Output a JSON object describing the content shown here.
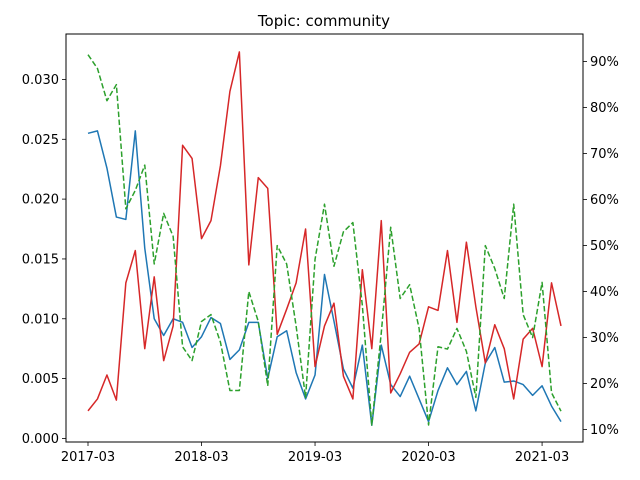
{
  "chart_data": {
    "type": "line",
    "title": "Topic: community",
    "xlabel": "",
    "ylabel": "",
    "y2label": "",
    "x_dates": [
      "2017-03",
      "2017-04",
      "2017-05",
      "2017-06",
      "2017-07",
      "2017-08",
      "2017-09",
      "2017-10",
      "2017-11",
      "2017-12",
      "2018-01",
      "2018-02",
      "2018-03",
      "2018-04",
      "2018-05",
      "2018-06",
      "2018-07",
      "2018-08",
      "2018-09",
      "2018-10",
      "2018-11",
      "2018-12",
      "2019-01",
      "2019-02",
      "2019-03",
      "2019-04",
      "2019-05",
      "2019-06",
      "2019-07",
      "2019-08",
      "2019-09",
      "2019-10",
      "2019-11",
      "2019-12",
      "2020-01",
      "2020-02",
      "2020-03",
      "2020-04",
      "2020-05",
      "2020-06",
      "2020-07",
      "2020-08",
      "2020-09",
      "2020-10",
      "2020-11",
      "2020-12",
      "2021-01",
      "2021-02",
      "2021-03",
      "2021-04",
      "2021-05"
    ],
    "x_ticks": [
      "2017-03",
      "2018-03",
      "2019-03",
      "2020-03",
      "2021-03"
    ],
    "ylim": [
      -0.0003,
      0.0338
    ],
    "y_ticks": [
      0.0,
      0.005,
      0.01,
      0.015,
      0.02,
      0.025,
      0.03
    ],
    "y_tick_labels": [
      "0.000",
      "0.005",
      "0.010",
      "0.015",
      "0.020",
      "0.025",
      "0.030"
    ],
    "y2lim": [
      7.3,
      96.0
    ],
    "y2_ticks": [
      10,
      20,
      30,
      40,
      50,
      60,
      70,
      80,
      90
    ],
    "y2_tick_labels": [
      "10%",
      "20%",
      "30%",
      "40%",
      "50%",
      "60%",
      "70%",
      "80%",
      "90%"
    ],
    "series": [
      {
        "axis": "left",
        "color": "#1f77b4",
        "dash": "solid",
        "values": [
          0.0255,
          0.0257,
          0.0226,
          0.0185,
          0.0183,
          0.0257,
          0.0159,
          0.01,
          0.0086,
          0.01,
          0.0097,
          0.0076,
          0.0085,
          0.0101,
          0.0096,
          0.0066,
          0.0074,
          0.0097,
          0.0097,
          0.005,
          0.0085,
          0.009,
          0.0055,
          0.0033,
          0.0053,
          0.0137,
          0.0098,
          0.0058,
          0.0042,
          0.0078,
          0.0011,
          0.0078,
          0.0045,
          0.0035,
          0.0052,
          0.0033,
          0.0014,
          0.004,
          0.0059,
          0.0045,
          0.0056,
          0.0023,
          0.0063,
          0.0076,
          0.0047,
          0.0048,
          0.0045,
          0.0036,
          0.0044,
          0.0027,
          0.0014
        ]
      },
      {
        "axis": "left",
        "color": "#d62728",
        "dash": "solid",
        "values": [
          0.0023,
          0.0033,
          0.0053,
          0.0032,
          0.013,
          0.0157,
          0.0075,
          0.0135,
          0.0065,
          0.0094,
          0.0245,
          0.0234,
          0.0167,
          0.0182,
          0.0228,
          0.029,
          0.0323,
          0.0145,
          0.0218,
          0.0209,
          0.0087,
          0.0108,
          0.013,
          0.0175,
          0.006,
          0.0094,
          0.0113,
          0.0052,
          0.0033,
          0.0141,
          0.0075,
          0.0182,
          0.0038,
          0.0054,
          0.0072,
          0.0079,
          0.011,
          0.0107,
          0.0157,
          0.0097,
          0.0164,
          0.011,
          0.0063,
          0.0095,
          0.0075,
          0.0033,
          0.0083,
          0.0092,
          0.006,
          0.013,
          0.0094
        ]
      },
      {
        "axis": "right",
        "color": "#2ca02c",
        "dash": "dashed",
        "values": [
          91.5,
          88.5,
          81.5,
          85.0,
          58.0,
          62.0,
          67.5,
          46.0,
          57.0,
          52.0,
          28.0,
          25.0,
          33.5,
          35.0,
          29.0,
          18.5,
          18.5,
          40.0,
          33.5,
          19.5,
          50.0,
          46.0,
          32.5,
          17.0,
          47.0,
          59.0,
          45.5,
          53.0,
          55.0,
          37.0,
          11.0,
          31.0,
          54.0,
          38.5,
          41.5,
          32.0,
          11.0,
          28.0,
          27.5,
          32.0,
          27.0,
          17.0,
          50.0,
          45.0,
          38.5,
          59.0,
          35.0,
          30.0,
          42.0,
          18.0,
          14.0
        ]
      }
    ],
    "grid": false,
    "legend": "none"
  }
}
